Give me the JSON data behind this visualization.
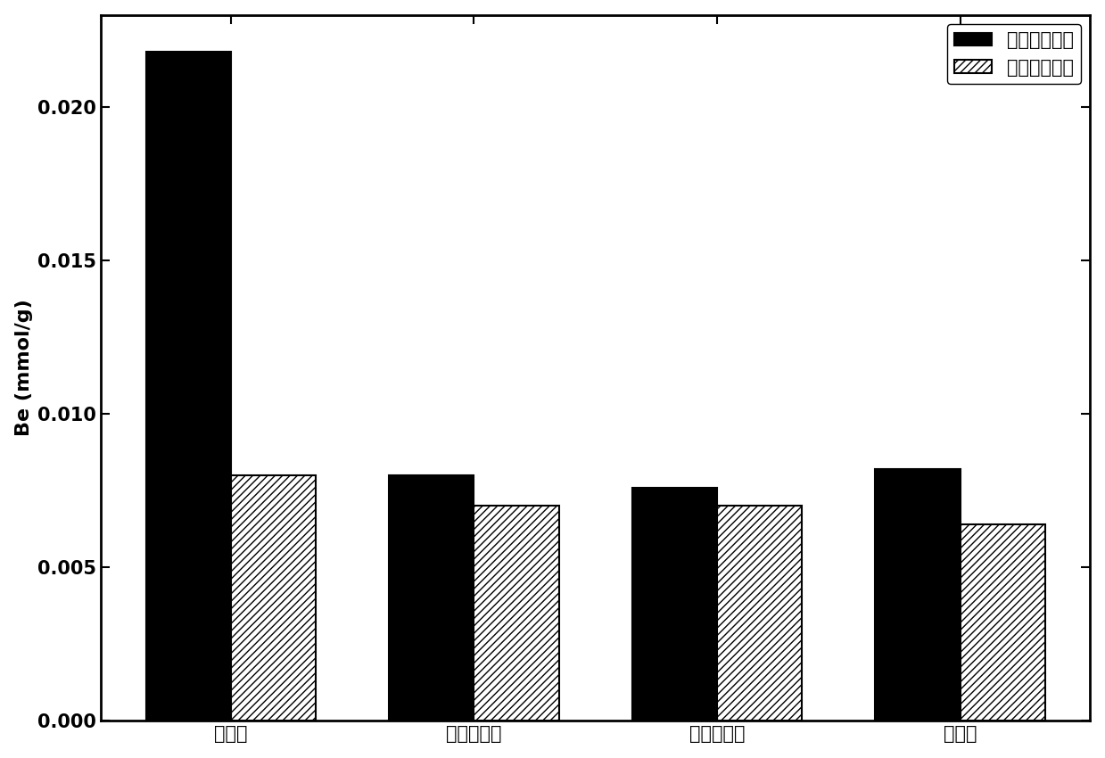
{
  "categories": [
    "毒死蜊",
    "乙酰甲胺磷",
    "甲基对硫磷",
    "久效磷"
  ],
  "series1_label": "印迹纳米纤维",
  "series2_label": "空白纳米纤维",
  "series1_values": [
    0.0218,
    0.008,
    0.0076,
    0.0082
  ],
  "series2_values": [
    0.008,
    0.007,
    0.007,
    0.0064
  ],
  "bar_width": 0.35,
  "ylabel": "Be (mmol/g)",
  "ylim": [
    0,
    0.023
  ],
  "yticks": [
    0.0,
    0.005,
    0.01,
    0.015,
    0.02
  ],
  "series1_color": "#000000",
  "series2_color": "#ffffff",
  "series2_hatch": "////",
  "background_color": "#ffffff",
  "legend_loc": "upper right",
  "axis_fontsize": 16,
  "tick_fontsize": 15,
  "legend_fontsize": 15
}
